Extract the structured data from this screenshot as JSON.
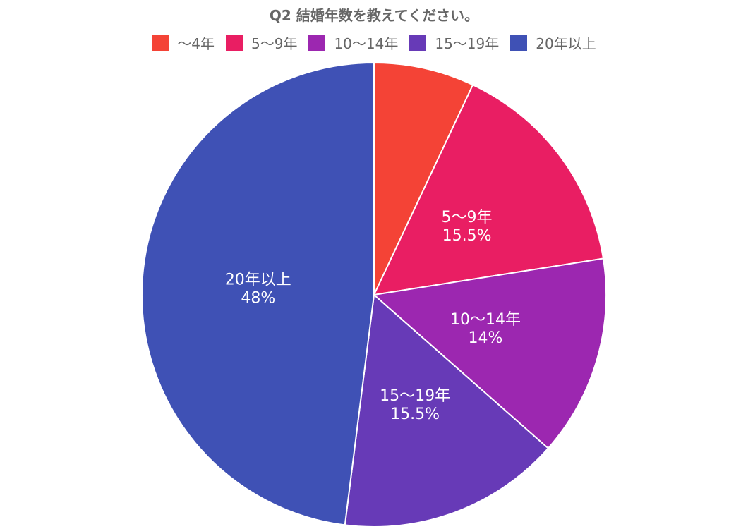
{
  "chart_data": {
    "type": "pie",
    "title": "Q2 結婚年数を教えてください。",
    "legend_position": "top",
    "categories": [
      "～4年",
      "5～9年",
      "10～14年",
      "15～19年",
      "20年以上"
    ],
    "values": [
      7,
      15.5,
      14,
      15.5,
      48
    ],
    "value_labels": [
      "",
      "15.5%",
      "14%",
      "15.5%",
      "48%"
    ],
    "colors": [
      "#f44336",
      "#e91e63",
      "#9c27b0",
      "#673ab7",
      "#3f51b5"
    ]
  }
}
